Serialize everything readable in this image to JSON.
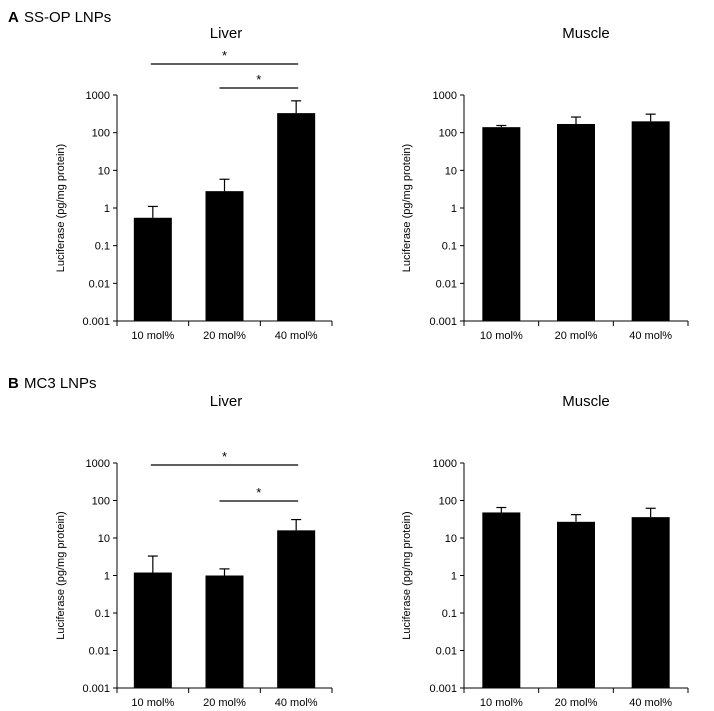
{
  "panels": [
    {
      "letter": "A",
      "title": "SS-OP LNPs"
    },
    {
      "letter": "B",
      "title": "MC3 LNPs"
    }
  ],
  "chart_data": [
    {
      "type": "bar",
      "panel": "A",
      "title": "Liver",
      "ylabel": "Luciferase (pg/mg protein)",
      "yscale": "log",
      "ylim": [
        0.001,
        1000
      ],
      "yticks": [
        "1000",
        "100",
        "10",
        "1",
        "0.1",
        "0.01",
        "0.001"
      ],
      "categories": [
        "10 mol%",
        "20 mol%",
        "40 mol%"
      ],
      "values": [
        0.55,
        2.8,
        330
      ],
      "error_upper": [
        1.1,
        5.8,
        700
      ],
      "significance": [
        {
          "from": 0,
          "to": 2,
          "label": "*"
        },
        {
          "from": 1,
          "to": 2,
          "label": "*"
        }
      ]
    },
    {
      "type": "bar",
      "panel": "A",
      "title": "Muscle",
      "ylabel": "Luciferase (pg/mg protein)",
      "yscale": "log",
      "ylim": [
        0.001,
        1000
      ],
      "yticks": [
        "1000",
        "100",
        "10",
        "1",
        "0.1",
        "0.01",
        "0.001"
      ],
      "categories": [
        "10 mol%",
        "20 mol%",
        "40 mol%"
      ],
      "values": [
        140,
        170,
        200
      ],
      "error_upper": [
        155,
        260,
        310
      ],
      "significance": []
    },
    {
      "type": "bar",
      "panel": "B",
      "title": "Liver",
      "ylabel": "Luciferase (pg/mg protein)",
      "yscale": "log",
      "ylim": [
        0.001,
        1000
      ],
      "yticks": [
        "1000",
        "100",
        "10",
        "1",
        "0.1",
        "0.01",
        "0.001"
      ],
      "categories": [
        "10 mol%",
        "20 mol%",
        "40 mol%"
      ],
      "values": [
        1.2,
        1.0,
        16
      ],
      "error_upper": [
        3.3,
        1.5,
        31
      ],
      "significance": [
        {
          "from": 0,
          "to": 2,
          "label": "*"
        },
        {
          "from": 1,
          "to": 2,
          "label": "*"
        }
      ]
    },
    {
      "type": "bar",
      "panel": "B",
      "title": "Muscle",
      "ylabel": "Luciferase (pg/mg protein)",
      "yscale": "log",
      "ylim": [
        0.001,
        1000
      ],
      "yticks": [
        "1000",
        "100",
        "10",
        "1",
        "0.1",
        "0.01",
        "0.001"
      ],
      "categories": [
        "10 mol%",
        "20 mol%",
        "40 mol%"
      ],
      "values": [
        48,
        27,
        36
      ],
      "error_upper": [
        65,
        42,
        62
      ],
      "significance": []
    }
  ]
}
